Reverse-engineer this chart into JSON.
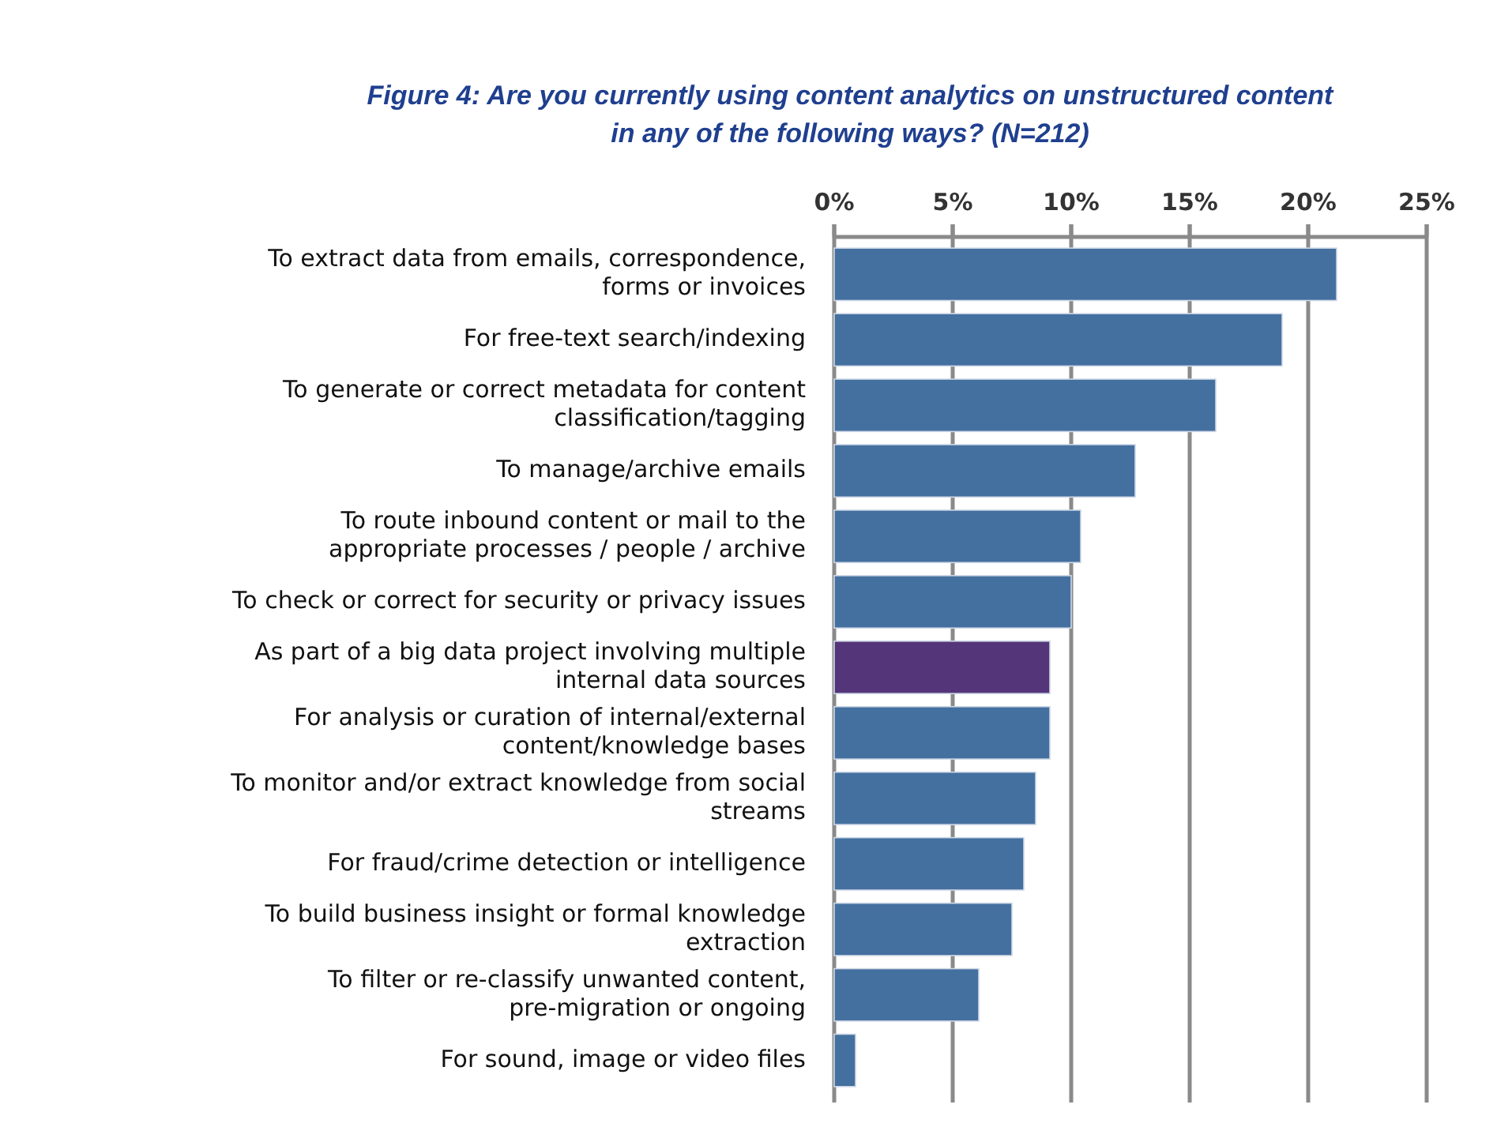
{
  "chart_data": {
    "type": "bar",
    "orientation": "horizontal",
    "title": "Figure 4: Are you currently using content analytics on unstructured content\nin any of the following ways? (N=212)",
    "categories": [
      "To extract data from emails, correspondence,\nforms or invoices",
      "For free-text search/indexing",
      "To generate or correct metadata for content\nclassification/tagging",
      "To manage/archive emails",
      "To route inbound content or mail to the\nappropriate processes / people / archive",
      "To check or correct for security or privacy issues",
      "As part of a big data project involving multiple\ninternal data sources",
      "For analysis or curation of  internal/external\ncontent/knowledge bases",
      "To monitor and/or extract knowledge from social\nstreams",
      "For fraud/crime detection or intelligence",
      "To build business insight or formal knowledge\nextraction",
      "To filter or re-classify unwanted content,\npre-migration or ongoing",
      "For sound, image or video files"
    ],
    "values": [
      21.2,
      18.9,
      16.1,
      12.7,
      10.4,
      10.0,
      9.1,
      9.1,
      8.5,
      8.0,
      7.5,
      6.1,
      0.9
    ],
    "colors": [
      "#4470a0",
      "#4470a0",
      "#4470a0",
      "#4470a0",
      "#4470a0",
      "#4470a0",
      "#55357a",
      "#4470a0",
      "#4470a0",
      "#4470a0",
      "#4470a0",
      "#4470a0",
      "#4470a0"
    ],
    "xlim": [
      0,
      25
    ],
    "xticks": [
      {
        "value": 0,
        "label": "0%"
      },
      {
        "value": 5,
        "label": "5%"
      },
      {
        "value": 10,
        "label": "10%"
      },
      {
        "value": 15,
        "label": "15%"
      },
      {
        "value": 20,
        "label": "20%"
      },
      {
        "value": 25,
        "label": "25%"
      }
    ],
    "grid": "x"
  }
}
